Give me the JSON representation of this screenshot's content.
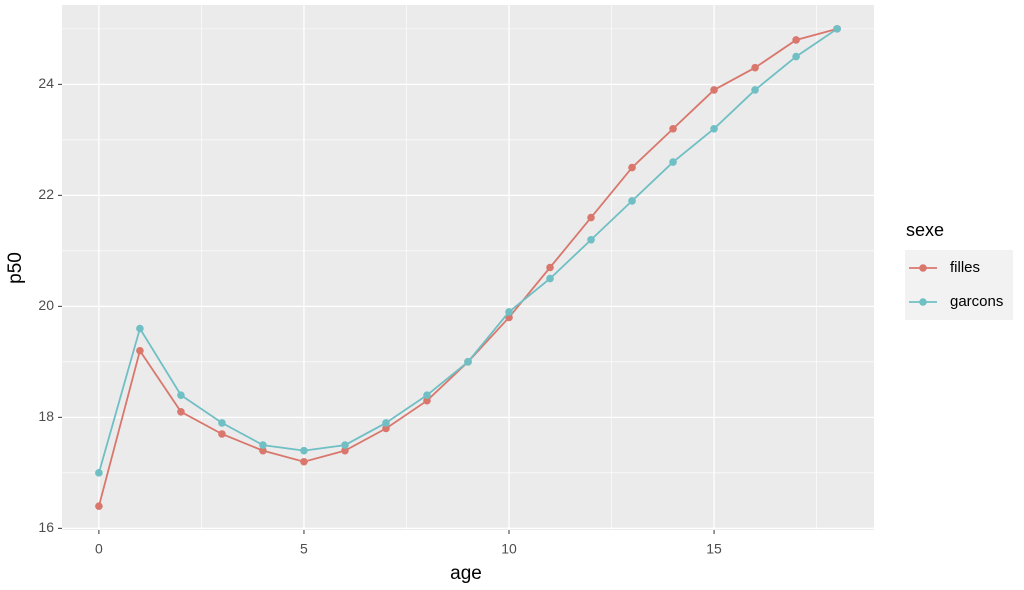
{
  "chart_data": {
    "type": "line",
    "x_label": "age",
    "y_label": "p50",
    "legend_title": "sexe",
    "x": [
      0,
      1,
      2,
      3,
      4,
      5,
      6,
      7,
      8,
      9,
      10,
      11,
      12,
      13,
      14,
      15,
      16,
      17,
      18
    ],
    "series": [
      {
        "name": "filles",
        "color": "#d9776c",
        "values": [
          16.4,
          19.2,
          18.1,
          17.7,
          17.4,
          17.2,
          17.4,
          17.8,
          18.3,
          19.0,
          19.8,
          20.7,
          21.6,
          22.5,
          23.2,
          23.9,
          24.3,
          24.8,
          25.0
        ]
      },
      {
        "name": "garcons",
        "color": "#6fbfc4",
        "values": [
          17.0,
          19.6,
          18.4,
          17.9,
          17.5,
          17.4,
          17.5,
          17.9,
          18.4,
          19.0,
          19.9,
          20.5,
          21.2,
          21.9,
          22.6,
          23.2,
          23.9,
          24.5,
          25.0
        ]
      }
    ],
    "xlim": [
      -0.9,
      18.9
    ],
    "ylim": [
      15.97,
      25.43
    ],
    "xticks": [
      0,
      5,
      10,
      15
    ],
    "yticks": [
      16,
      18,
      20,
      22,
      24
    ],
    "grid": true,
    "legend": "right"
  }
}
